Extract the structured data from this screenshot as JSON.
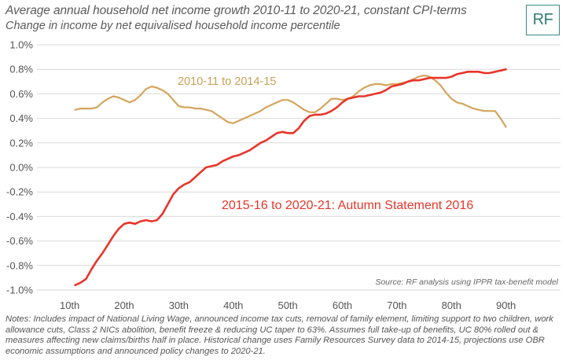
{
  "header": {
    "title": "Average annual household net income growth 2010-11 to 2020-21, constant CPI-terms",
    "subtitle": "Change in income by net equivalised household income percentile"
  },
  "logo": {
    "text": "RF"
  },
  "colors": {
    "series_2010": "#d4a55c",
    "series_2015": "#e8352a",
    "logo": "#2e7d73",
    "grid": "#d9d9d9"
  },
  "chart_data": {
    "type": "line",
    "title": "Average annual household net income growth 2010-11 to 2020-21, constant CPI-terms",
    "subtitle": "Change in income by net equivalised household income percentile",
    "xlabel": "",
    "ylabel": "",
    "x_ticks": [
      "10th",
      "20th",
      "30th",
      "40th",
      "50th",
      "60th",
      "70th",
      "80th",
      "90th"
    ],
    "x_tick_values": [
      10,
      20,
      30,
      40,
      50,
      60,
      70,
      80,
      90
    ],
    "xlim": [
      4,
      100
    ],
    "y_ticks": [
      "1.0%",
      "0.8%",
      "0.6%",
      "0.4%",
      "0.2%",
      "0.0%",
      "-0.2%",
      "-0.4%",
      "-0.6%",
      "-0.8%",
      "-1.0%"
    ],
    "y_tick_values": [
      1.0,
      0.8,
      0.6,
      0.4,
      0.2,
      0.0,
      -0.2,
      -0.4,
      -0.6,
      -0.8,
      -1.0
    ],
    "ylim": [
      -1.0,
      1.0
    ],
    "grid": "horizontal",
    "source": "Source: RF analysis using IPPR tax-benefit model",
    "series": [
      {
        "name": "2010-11 to 2014-15",
        "color": "#d4a55c",
        "x": [
          11,
          12,
          13,
          14,
          15,
          16,
          17,
          18,
          19,
          20,
          21,
          22,
          23,
          24,
          25,
          26,
          27,
          28,
          29,
          30,
          31,
          32,
          33,
          34,
          35,
          36,
          37,
          38,
          39,
          40,
          41,
          42,
          43,
          44,
          45,
          46,
          47,
          48,
          49,
          50,
          51,
          52,
          53,
          54,
          55,
          56,
          57,
          58,
          59,
          60,
          61,
          62,
          63,
          64,
          65,
          66,
          67,
          68,
          69,
          70,
          71,
          72,
          73,
          74,
          75,
          76,
          77,
          78,
          79,
          80,
          81,
          82,
          83,
          84,
          85,
          86,
          87,
          88,
          89,
          90
        ],
        "values": [
          0.47,
          0.48,
          0.48,
          0.48,
          0.49,
          0.53,
          0.56,
          0.58,
          0.57,
          0.55,
          0.53,
          0.55,
          0.59,
          0.64,
          0.66,
          0.65,
          0.63,
          0.6,
          0.55,
          0.5,
          0.49,
          0.49,
          0.48,
          0.48,
          0.47,
          0.46,
          0.43,
          0.4,
          0.37,
          0.36,
          0.38,
          0.4,
          0.42,
          0.44,
          0.46,
          0.49,
          0.51,
          0.53,
          0.55,
          0.55,
          0.53,
          0.5,
          0.47,
          0.45,
          0.45,
          0.48,
          0.52,
          0.56,
          0.56,
          0.55,
          0.56,
          0.58,
          0.62,
          0.65,
          0.67,
          0.68,
          0.68,
          0.67,
          0.68,
          0.68,
          0.69,
          0.7,
          0.72,
          0.74,
          0.75,
          0.74,
          0.71,
          0.67,
          0.61,
          0.56,
          0.53,
          0.52,
          0.5,
          0.48,
          0.47,
          0.46,
          0.46,
          0.46,
          0.4,
          0.33
        ]
      },
      {
        "name": "2015-16 to 2020-21: Autumn Statement 2016",
        "color": "#e8352a",
        "x": [
          11,
          12,
          13,
          14,
          15,
          16,
          17,
          18,
          19,
          20,
          21,
          22,
          23,
          24,
          25,
          26,
          27,
          28,
          29,
          30,
          31,
          32,
          33,
          34,
          35,
          36,
          37,
          38,
          39,
          40,
          41,
          42,
          43,
          44,
          45,
          46,
          47,
          48,
          49,
          50,
          51,
          52,
          53,
          54,
          55,
          56,
          57,
          58,
          59,
          60,
          61,
          62,
          63,
          64,
          65,
          66,
          67,
          68,
          69,
          70,
          71,
          72,
          73,
          74,
          75,
          76,
          77,
          78,
          79,
          80,
          81,
          82,
          83,
          84,
          85,
          86,
          87,
          88,
          89,
          90
        ],
        "values": [
          -0.96,
          -0.94,
          -0.91,
          -0.83,
          -0.76,
          -0.7,
          -0.63,
          -0.56,
          -0.5,
          -0.46,
          -0.45,
          -0.46,
          -0.44,
          -0.43,
          -0.44,
          -0.43,
          -0.38,
          -0.3,
          -0.22,
          -0.17,
          -0.14,
          -0.12,
          -0.08,
          -0.04,
          0.0,
          0.01,
          0.02,
          0.05,
          0.07,
          0.09,
          0.1,
          0.12,
          0.14,
          0.17,
          0.2,
          0.22,
          0.25,
          0.28,
          0.29,
          0.28,
          0.28,
          0.32,
          0.38,
          0.42,
          0.43,
          0.43,
          0.44,
          0.46,
          0.49,
          0.53,
          0.56,
          0.57,
          0.58,
          0.58,
          0.59,
          0.6,
          0.61,
          0.63,
          0.66,
          0.67,
          0.68,
          0.7,
          0.71,
          0.71,
          0.72,
          0.73,
          0.73,
          0.73,
          0.73,
          0.74,
          0.76,
          0.77,
          0.78,
          0.78,
          0.78,
          0.77,
          0.77,
          0.78,
          0.79,
          0.8
        ]
      }
    ],
    "annotations": [
      "2010-11 to 2014-15",
      "2015-16 to 2020-21: Autumn Statement 2016"
    ]
  },
  "notes": "Notes: Includes impact of National Living Wage, announced income tax cuts, removal of family element, limiting support to two children, work allowance cuts, Class 2 NICs abolition, benefit freeze & reducing UC taper to 63%. Assumes full take-up of benefits, UC 80% rolled out & measures affecting new claims/births half in place. Historical change uses Family Resources Survey data to 2014-15, projections use OBR economic assumptions and announced policy changes to 2020-21."
}
